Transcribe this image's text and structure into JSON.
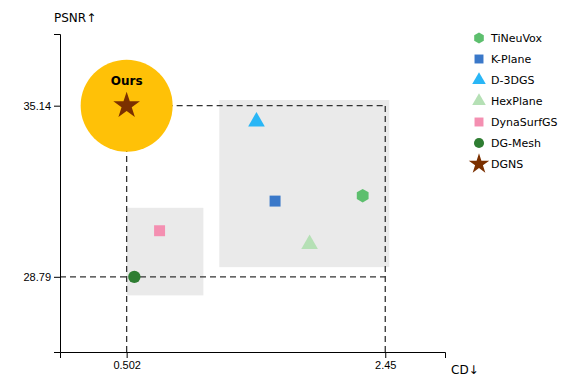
{
  "chart_data": {
    "type": "scatter",
    "x_label": "CD↓",
    "y_label": "PSNR↑",
    "xlim": [
      0.0,
      2.9
    ],
    "ylim": [
      26.0,
      37.8
    ],
    "xticks": [
      0.502,
      2.45
    ],
    "yticks": [
      28.79,
      35.14
    ],
    "grid": false,
    "legend": "right",
    "series": [
      {
        "name": "TiNeuVox",
        "color": "#5dbf6e",
        "marker": "hexagon",
        "x": [
          2.28
        ],
        "values": [
          31.8
        ]
      },
      {
        "name": "K-Plane",
        "color": "#3a78c9",
        "marker": "square",
        "x": [
          1.62
        ],
        "values": [
          31.6
        ]
      },
      {
        "name": "D-3DGS",
        "color": "#29b6f6",
        "marker": "triangle",
        "x": [
          1.48
        ],
        "values": [
          34.55
        ]
      },
      {
        "name": "HexPlane",
        "color": "#b5e0b5",
        "marker": "triangle",
        "x": [
          1.88
        ],
        "values": [
          30.0
        ]
      },
      {
        "name": "DynaSurfGS",
        "color": "#f48fb1",
        "marker": "square",
        "x": [
          0.75
        ],
        "values": [
          30.5
        ]
      },
      {
        "name": "DG-Mesh",
        "color": "#2e7d32",
        "marker": "circle",
        "x": [
          0.56
        ],
        "values": [
          28.79
        ]
      },
      {
        "name": "DGNS",
        "color": "#7b3000",
        "marker": "star",
        "x": [
          0.502
        ],
        "values": [
          35.14
        ]
      }
    ],
    "annotations": [
      {
        "text": "Ours",
        "x": 0.502,
        "y": 35.14,
        "color": "#FFC107"
      }
    ],
    "shaded_regions": [
      {
        "x0": 1.2,
        "y0": 29.15,
        "x1": 2.48,
        "y1": 35.35
      },
      {
        "x0": 0.502,
        "y0": 28.1,
        "x1": 1.08,
        "y1": 31.35
      }
    ]
  }
}
